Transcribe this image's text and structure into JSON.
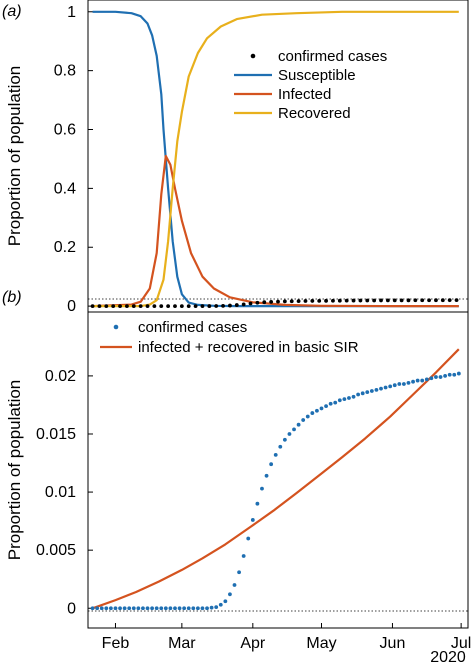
{
  "chart_data": [
    {
      "type": "line",
      "panel_label": "(a)",
      "ylabel": "Proportion of population",
      "xlim": [
        "2020-01-20",
        "2020-07-04"
      ],
      "ylim": [
        -0.02,
        1.04
      ],
      "yticks": [
        0,
        0.2,
        0.4,
        0.6,
        0.8,
        1
      ],
      "ytick_labels": [
        "0",
        "0.2",
        "0.4",
        "0.6",
        "0.8",
        "1"
      ],
      "baseline": 0,
      "grid": false,
      "legend_position": "upper-right",
      "series": [
        {
          "name": "confirmed cases",
          "style": "dots",
          "color": "#000000",
          "x": [
            "2020-01-22",
            "2020-01-25",
            "2020-01-28",
            "2020-01-31",
            "2020-02-03",
            "2020-02-06",
            "2020-02-09",
            "2020-02-12",
            "2020-02-15",
            "2020-02-18",
            "2020-02-21",
            "2020-02-24",
            "2020-02-27",
            "2020-03-01",
            "2020-03-04",
            "2020-03-07",
            "2020-03-10",
            "2020-03-13",
            "2020-03-16",
            "2020-03-19",
            "2020-03-22",
            "2020-03-25",
            "2020-03-28",
            "2020-03-31",
            "2020-04-03",
            "2020-04-06",
            "2020-04-09",
            "2020-04-12",
            "2020-04-15",
            "2020-04-18",
            "2020-04-21",
            "2020-04-24",
            "2020-04-27",
            "2020-04-30",
            "2020-05-03",
            "2020-05-06",
            "2020-05-09",
            "2020-05-12",
            "2020-05-15",
            "2020-05-18",
            "2020-05-21",
            "2020-05-24",
            "2020-05-27",
            "2020-05-30",
            "2020-06-02",
            "2020-06-05",
            "2020-06-08",
            "2020-06-11",
            "2020-06-14",
            "2020-06-17",
            "2020-06-20",
            "2020-06-23",
            "2020-06-26",
            "2020-06-29"
          ],
          "y": [
            0,
            0,
            0,
            0,
            0,
            0,
            0,
            0,
            0,
            0,
            0,
            0,
            0,
            0,
            0,
            0,
            0,
            0.0001,
            0.0003,
            0.0008,
            0.0018,
            0.0035,
            0.006,
            0.009,
            0.0115,
            0.0133,
            0.0145,
            0.0153,
            0.016,
            0.0166,
            0.017,
            0.0173,
            0.0176,
            0.0178,
            0.018,
            0.0182,
            0.0184,
            0.0186,
            0.0188,
            0.0189,
            0.019,
            0.0191,
            0.0193,
            0.0194,
            0.0195,
            0.0196,
            0.0197,
            0.0198,
            0.0199,
            0.02,
            0.0201,
            0.0201,
            0.0202,
            0.0203
          ]
        },
        {
          "name": "Susceptible",
          "style": "line",
          "color": "#1f6fb2",
          "x": [
            "2020-01-22",
            "2020-02-01",
            "2020-02-08",
            "2020-02-12",
            "2020-02-15",
            "2020-02-17",
            "2020-02-19",
            "2020-02-21",
            "2020-02-22",
            "2020-02-24",
            "2020-02-26",
            "2020-02-28",
            "2020-03-01",
            "2020-03-04",
            "2020-03-08",
            "2020-03-15",
            "2020-03-25",
            "2020-04-10",
            "2020-05-01",
            "2020-06-01",
            "2020-06-30"
          ],
          "y": [
            1,
            1,
            0.995,
            0.985,
            0.96,
            0.92,
            0.85,
            0.72,
            0.6,
            0.4,
            0.22,
            0.1,
            0.04,
            0.012,
            0.004,
            0.001,
            0,
            0,
            0,
            0,
            0
          ]
        },
        {
          "name": "Infected",
          "style": "line",
          "color": "#d4531f",
          "x": [
            "2020-01-22",
            "2020-02-08",
            "2020-02-12",
            "2020-02-16",
            "2020-02-19",
            "2020-02-21",
            "2020-02-23",
            "2020-02-25",
            "2020-02-27",
            "2020-03-01",
            "2020-03-05",
            "2020-03-10",
            "2020-03-15",
            "2020-03-22",
            "2020-04-01",
            "2020-04-15",
            "2020-05-01",
            "2020-06-01",
            "2020-06-30"
          ],
          "y": [
            0,
            0.005,
            0.015,
            0.06,
            0.18,
            0.38,
            0.51,
            0.48,
            0.4,
            0.29,
            0.18,
            0.1,
            0.06,
            0.03,
            0.013,
            0.004,
            0.001,
            0,
            0
          ]
        },
        {
          "name": "Recovered",
          "style": "line",
          "color": "#e8b01c",
          "x": [
            "2020-01-22",
            "2020-02-12",
            "2020-02-16",
            "2020-02-19",
            "2020-02-22",
            "2020-02-24",
            "2020-02-26",
            "2020-02-28",
            "2020-03-01",
            "2020-03-04",
            "2020-03-08",
            "2020-03-12",
            "2020-03-18",
            "2020-03-25",
            "2020-04-05",
            "2020-04-20",
            "2020-05-10",
            "2020-06-10",
            "2020-06-30"
          ],
          "y": [
            0,
            0,
            0.005,
            0.02,
            0.09,
            0.22,
            0.4,
            0.56,
            0.66,
            0.78,
            0.86,
            0.91,
            0.95,
            0.975,
            0.99,
            0.995,
            1,
            1,
            1
          ]
        }
      ]
    },
    {
      "type": "line",
      "panel_label": "(b)",
      "ylabel": "Proportion of population",
      "xlim": [
        "2020-01-20",
        "2020-07-04"
      ],
      "ylim": [
        -0.0017,
        0.0255
      ],
      "yticks": [
        0,
        0.005,
        0.01,
        0.015,
        0.02
      ],
      "ytick_labels": [
        "0",
        "0.005",
        "0.01",
        "0.015",
        "0.02"
      ],
      "xticks": [
        "2020-02-01",
        "2020-03-01",
        "2020-04-01",
        "2020-05-01",
        "2020-06-01",
        "2020-07-01"
      ],
      "xtick_labels": [
        "Feb",
        "Mar",
        "Apr",
        "May",
        "Jun",
        "Jul"
      ],
      "xaxis_year_label": "2020",
      "baseline": 0,
      "grid": false,
      "legend_position": "upper-left",
      "series": [
        {
          "name": "confirmed cases",
          "style": "dots",
          "color": "#1f6fb2",
          "x": [
            "2020-01-22",
            "2020-01-24",
            "2020-01-26",
            "2020-01-28",
            "2020-01-30",
            "2020-02-01",
            "2020-02-03",
            "2020-02-05",
            "2020-02-07",
            "2020-02-09",
            "2020-02-11",
            "2020-02-13",
            "2020-02-15",
            "2020-02-17",
            "2020-02-19",
            "2020-02-21",
            "2020-02-23",
            "2020-02-25",
            "2020-02-27",
            "2020-02-29",
            "2020-03-02",
            "2020-03-04",
            "2020-03-06",
            "2020-03-08",
            "2020-03-10",
            "2020-03-12",
            "2020-03-14",
            "2020-03-16",
            "2020-03-18",
            "2020-03-20",
            "2020-03-22",
            "2020-03-24",
            "2020-03-26",
            "2020-03-28",
            "2020-03-30",
            "2020-04-01",
            "2020-04-03",
            "2020-04-05",
            "2020-04-07",
            "2020-04-09",
            "2020-04-11",
            "2020-04-13",
            "2020-04-15",
            "2020-04-17",
            "2020-04-19",
            "2020-04-21",
            "2020-04-23",
            "2020-04-25",
            "2020-04-27",
            "2020-04-29",
            "2020-05-01",
            "2020-05-03",
            "2020-05-05",
            "2020-05-07",
            "2020-05-09",
            "2020-05-11",
            "2020-05-13",
            "2020-05-15",
            "2020-05-17",
            "2020-05-19",
            "2020-05-21",
            "2020-05-23",
            "2020-05-25",
            "2020-05-27",
            "2020-05-29",
            "2020-05-31",
            "2020-06-02",
            "2020-06-04",
            "2020-06-06",
            "2020-06-08",
            "2020-06-10",
            "2020-06-12",
            "2020-06-14",
            "2020-06-16",
            "2020-06-18",
            "2020-06-20",
            "2020-06-22",
            "2020-06-24",
            "2020-06-26",
            "2020-06-28",
            "2020-06-30"
          ],
          "y": [
            0,
            0,
            0,
            0,
            0,
            0,
            0,
            0,
            0,
            0,
            0,
            0,
            0,
            0,
            0,
            0,
            0,
            0,
            0,
            0,
            0,
            0,
            0,
            0,
            0,
            0,
            5e-05,
            0.0001,
            0.0003,
            0.0006,
            0.0012,
            0.002,
            0.0031,
            0.0045,
            0.006,
            0.0076,
            0.009,
            0.0103,
            0.0114,
            0.0124,
            0.0132,
            0.0139,
            0.0145,
            0.015,
            0.0154,
            0.0158,
            0.0162,
            0.0165,
            0.0168,
            0.017,
            0.0172,
            0.0174,
            0.0176,
            0.0177,
            0.0179,
            0.018,
            0.0181,
            0.0182,
            0.0184,
            0.0185,
            0.0186,
            0.0187,
            0.0188,
            0.0189,
            0.019,
            0.0191,
            0.0192,
            0.0193,
            0.0193,
            0.0194,
            0.0195,
            0.0196,
            0.0196,
            0.0197,
            0.0198,
            0.0199,
            0.0199,
            0.02,
            0.0201,
            0.0201,
            0.0202
          ]
        },
        {
          "name": "infected + recovered in basic SIR",
          "style": "line",
          "color": "#d4531f",
          "x": [
            "2020-01-22",
            "2020-02-01",
            "2020-02-10",
            "2020-02-20",
            "2020-03-01",
            "2020-03-10",
            "2020-03-20",
            "2020-03-31",
            "2020-04-10",
            "2020-04-20",
            "2020-05-01",
            "2020-05-10",
            "2020-05-20",
            "2020-05-31",
            "2020-06-10",
            "2020-06-20",
            "2020-06-30"
          ],
          "y": [
            0,
            0.0007,
            0.0014,
            0.0023,
            0.0033,
            0.0043,
            0.0055,
            0.007,
            0.0084,
            0.0099,
            0.0116,
            0.013,
            0.0146,
            0.0165,
            0.0184,
            0.0203,
            0.0223
          ]
        }
      ]
    }
  ]
}
